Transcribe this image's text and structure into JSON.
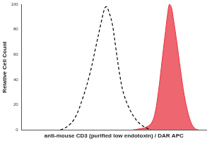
{
  "chart_data": {
    "type": "line",
    "xlabel": "anti-mouse CD3 (purified low endotoxin) / DAR APC",
    "ylabel": "Relative Cell Count",
    "xlim": [
      0,
      100
    ],
    "ylim": [
      0,
      100
    ],
    "yticks": [
      0,
      20,
      40,
      60,
      80,
      100
    ],
    "grid": false,
    "tick_labels": "y",
    "series": [
      {
        "color": "#000000",
        "line_style": "dashed",
        "x": [
          21,
          25,
          29,
          33,
          37,
          40,
          43,
          45,
          46,
          47,
          49,
          51,
          53,
          55,
          58,
          61,
          64,
          67,
          70
        ],
        "values": [
          0,
          3,
          10,
          25,
          45,
          65,
          85,
          97,
          98,
          95,
          85,
          65,
          45,
          30,
          18,
          10,
          5,
          2,
          0
        ]
      },
      {
        "color": "#e8333f",
        "type": "area",
        "x": [
          60,
          64,
          67,
          70,
          72,
          74,
          76,
          78,
          79,
          80,
          81,
          82,
          84,
          86,
          88,
          90,
          92,
          94,
          96
        ],
        "values": [
          0,
          1,
          2,
          5,
          12,
          30,
          55,
          80,
          92,
          100,
          98,
          90,
          70,
          48,
          28,
          14,
          5,
          1,
          0
        ]
      }
    ]
  }
}
